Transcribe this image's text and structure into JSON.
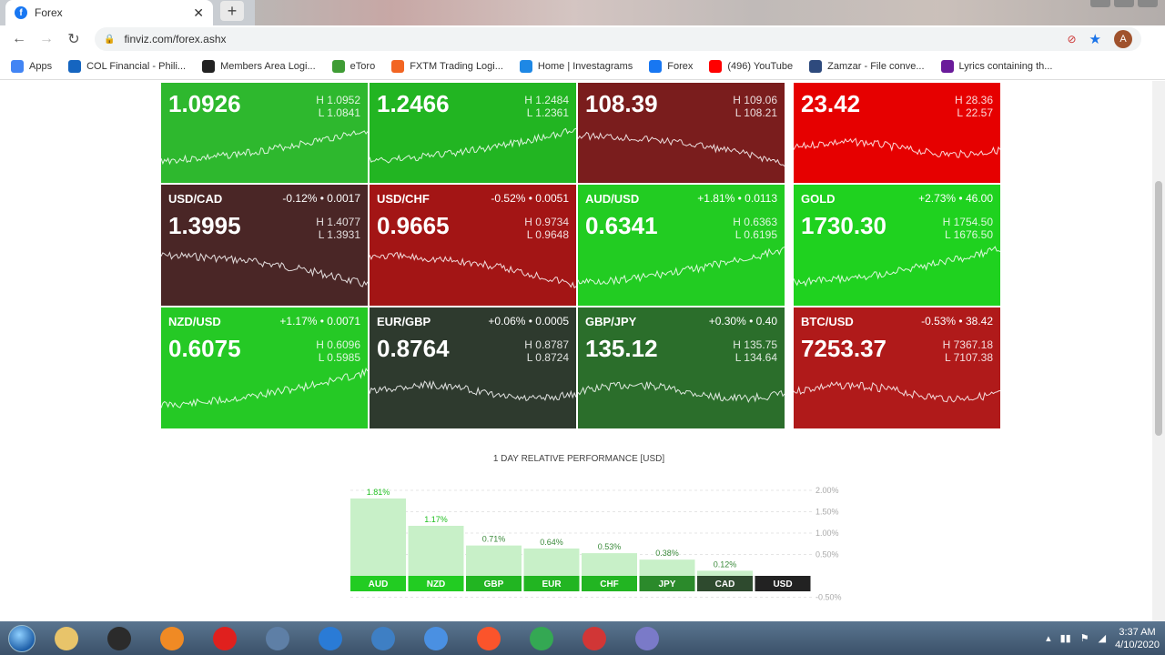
{
  "browser": {
    "tab_title": "Forex",
    "url": "finviz.com/forex.ashx",
    "avatar_letter": "A",
    "bookmarks": [
      {
        "label": "Apps",
        "color": "#4285f4"
      },
      {
        "label": "COL Financial - Phili...",
        "color": "#1565c0"
      },
      {
        "label": "Members Area Logi...",
        "color": "#222222"
      },
      {
        "label": "eToro",
        "color": "#3f9c35"
      },
      {
        "label": "FXTM Trading Logi...",
        "color": "#f26522"
      },
      {
        "label": "Home | Investagrams",
        "color": "#1e88e5"
      },
      {
        "label": "Forex",
        "color": "#1877f2"
      },
      {
        "label": "(496) YouTube",
        "color": "#ff0000"
      },
      {
        "label": "Zamzar - File conve...",
        "color": "#2e4a7d"
      },
      {
        "label": "Lyrics containing th...",
        "color": "#6a1b9a"
      }
    ]
  },
  "tiles": [
    {
      "symbol": "",
      "change": "",
      "price": "1.0926",
      "high": "H 1.0952",
      "low": "L 1.0841",
      "color": "#2eb82e",
      "trend": "up"
    },
    {
      "symbol": "",
      "change": "",
      "price": "1.2466",
      "high": "H 1.2484",
      "low": "L 1.2361",
      "color": "#22b522",
      "trend": "up"
    },
    {
      "symbol": "",
      "change": "",
      "price": "108.39",
      "high": "H 109.06",
      "low": "L 108.21",
      "color": "#7a1d1d",
      "trend": "down"
    },
    {
      "symbol": "",
      "change": "",
      "price": "23.42",
      "high": "H 28.36",
      "low": "L 22.57",
      "color": "#e60000",
      "trend": "flat"
    },
    {
      "symbol": "USD/CAD",
      "change": "-0.12% • 0.0017",
      "price": "1.3995",
      "high": "H 1.4077",
      "low": "L 1.3931",
      "color": "#4a2626",
      "trend": "down"
    },
    {
      "symbol": "USD/CHF",
      "change": "-0.52% • 0.0051",
      "price": "0.9665",
      "high": "H 0.9734",
      "low": "L 0.9648",
      "color": "#a31515",
      "trend": "down"
    },
    {
      "symbol": "AUD/USD",
      "change": "+1.81% • 0.0113",
      "price": "0.6341",
      "high": "H 0.6363",
      "low": "L 0.6195",
      "color": "#22cc22",
      "trend": "up"
    },
    {
      "symbol": "GOLD",
      "change": "+2.73% • 46.00",
      "price": "1730.30",
      "high": "H 1754.50",
      "low": "L 1676.50",
      "color": "#1fd21f",
      "trend": "up"
    },
    {
      "symbol": "NZD/USD",
      "change": "+1.17% • 0.0071",
      "price": "0.6075",
      "high": "H 0.6096",
      "low": "L 0.5985",
      "color": "#25c925",
      "trend": "up"
    },
    {
      "symbol": "EUR/GBP",
      "change": "+0.06% • 0.0005",
      "price": "0.8764",
      "high": "H 0.8787",
      "low": "L 0.8724",
      "color": "#2e3a2e",
      "trend": "flat"
    },
    {
      "symbol": "GBP/JPY",
      "change": "+0.30% • 0.40",
      "price": "135.12",
      "high": "H 135.75",
      "low": "L 134.64",
      "color": "#2b6e2b",
      "trend": "flat"
    },
    {
      "symbol": "BTC/USD",
      "change": "-0.53% • 38.42",
      "price": "7253.37",
      "high": "H 7367.18",
      "low": "L 7107.38",
      "color": "#b01a1a",
      "trend": "flat"
    }
  ],
  "chart_data": {
    "type": "bar",
    "title": "1 DAY RELATIVE PERFORMANCE [USD]",
    "categories": [
      "AUD",
      "NZD",
      "GBP",
      "EUR",
      "CHF",
      "JPY",
      "CAD",
      "USD"
    ],
    "values": [
      1.81,
      1.17,
      0.71,
      0.64,
      0.53,
      0.38,
      0.12,
      0.0
    ],
    "value_labels": [
      "1.81%",
      "1.17%",
      "0.71%",
      "0.64%",
      "0.53%",
      "0.38%",
      "0.12%",
      ""
    ],
    "yticks": [
      2.0,
      1.5,
      1.0,
      0.5,
      -0.5
    ],
    "ytick_labels": [
      "2.00%",
      "1.50%",
      "1.00%",
      "0.50%",
      "-0.50%"
    ],
    "label_colors": [
      "#22cc22",
      "#22cc22",
      "#22b522",
      "#22b522",
      "#22b522",
      "#2b8a2b",
      "#2e4a2e",
      "#222222"
    ]
  },
  "taskbar": {
    "time": "3:37 AM",
    "date": "4/10/2020",
    "apps": [
      {
        "name": "explorer-icon",
        "color": "#e8c46a"
      },
      {
        "name": "obs-icon",
        "color": "#2b2b2b"
      },
      {
        "name": "media-player-icon",
        "color": "#f08a24"
      },
      {
        "name": "opera-icon",
        "color": "#e0201e"
      },
      {
        "name": "calculator-icon",
        "color": "#5e7fa6"
      },
      {
        "name": "ie-icon",
        "color": "#2a7bd6"
      },
      {
        "name": "app-icon",
        "color": "#3e7fc4"
      },
      {
        "name": "chrome-old-icon",
        "color": "#4a90e2"
      },
      {
        "name": "brave-icon",
        "color": "#fb542b"
      },
      {
        "name": "chrome-icon",
        "color": "#34a853"
      },
      {
        "name": "opera-gx-icon",
        "color": "#d13636"
      },
      {
        "name": "app2-icon",
        "color": "#7a7ac8"
      }
    ]
  }
}
